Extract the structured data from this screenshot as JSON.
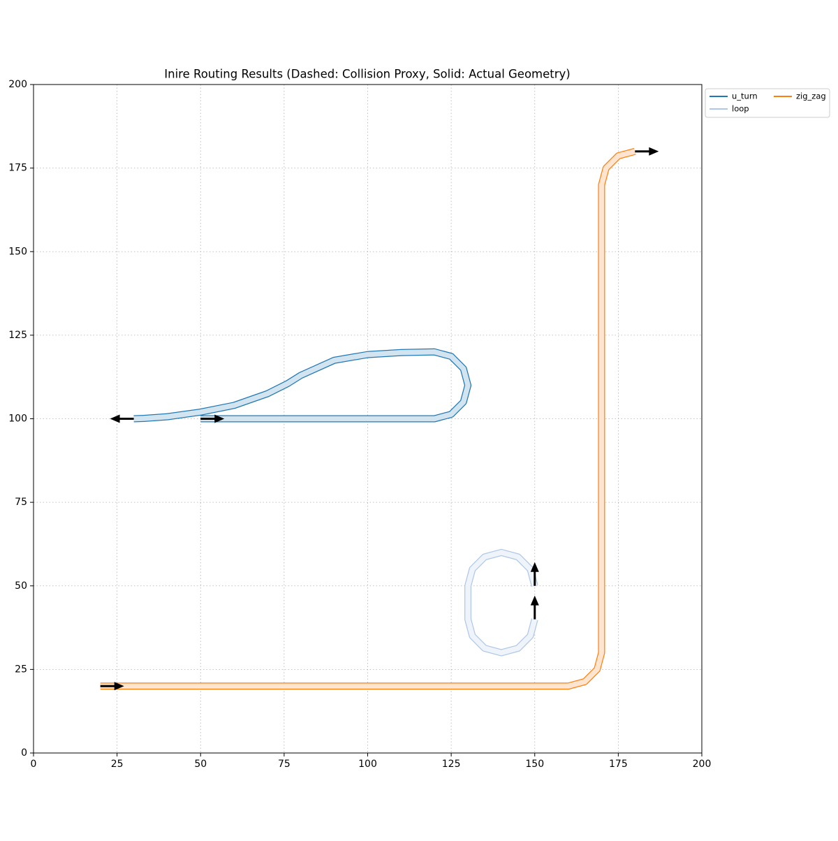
{
  "chart_data": {
    "type": "line",
    "title": "Inire Routing Results (Dashed: Collision Proxy, Solid: Actual Geometry)",
    "xlim": [
      0,
      200
    ],
    "ylim": [
      0,
      200
    ],
    "xticks": [
      0,
      25,
      50,
      75,
      100,
      125,
      150,
      175,
      200
    ],
    "yticks": [
      0,
      25,
      50,
      75,
      100,
      125,
      150,
      175,
      200
    ],
    "grid": true,
    "legend": "outside-upper-right",
    "series": [
      {
        "name": "u_turn",
        "color": "#1f77b4",
        "x": [
          50,
          120,
          125,
          128.66,
          130,
          128.66,
          125,
          120,
          110,
          100,
          90,
          80,
          76,
          70,
          60,
          50,
          40,
          33,
          30
        ],
        "values": [
          100,
          100,
          101.34,
          105,
          110,
          115,
          118.66,
          120,
          119.8,
          119.2,
          117.5,
          113,
          110.5,
          107.5,
          104,
          102,
          100.6,
          100.1,
          100
        ]
      },
      {
        "name": "loop",
        "color": "#aec7e8",
        "x": [
          150,
          148.66,
          145,
          140,
          135,
          131.34,
          130,
          130,
          131.34,
          135,
          140,
          145,
          148.66,
          150
        ],
        "values": [
          50,
          55,
          58.66,
          60,
          58.66,
          55,
          50,
          40,
          35,
          31.34,
          30,
          31.34,
          35,
          40
        ]
      },
      {
        "name": "zig_zag",
        "color": "#ff7f0e",
        "x": [
          20,
          160,
          165,
          168.66,
          170,
          170,
          171.34,
          175,
          180
        ],
        "values": [
          20,
          20,
          21.34,
          25,
          30,
          170,
          175,
          178.66,
          180
        ]
      }
    ]
  }
}
